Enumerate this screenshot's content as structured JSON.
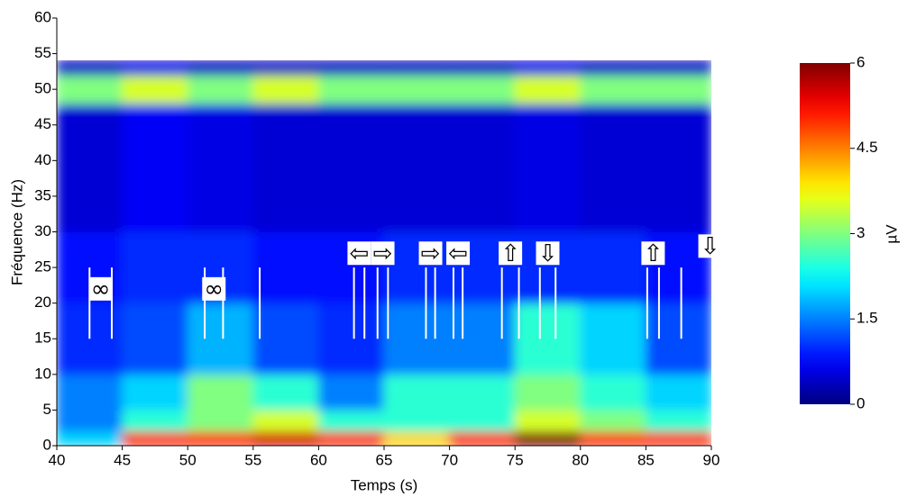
{
  "chart_data": {
    "type": "heatmap",
    "xlabel": "Temps (s)",
    "ylabel": "Fréquence (Hz)",
    "colorbar_label": "µV",
    "xlim": [
      40,
      90
    ],
    "ylim": [
      0,
      60
    ],
    "xticks": [
      40,
      45,
      50,
      55,
      60,
      65,
      70,
      75,
      80,
      85,
      90
    ],
    "yticks": [
      0,
      5,
      10,
      15,
      20,
      25,
      30,
      35,
      40,
      45,
      50,
      55,
      60
    ],
    "clim": [
      0,
      6
    ],
    "cticks": [
      0,
      1.5,
      3,
      4.5,
      6
    ],
    "colormap": "jet",
    "x_bins": [
      40,
      45,
      50,
      55,
      60,
      65,
      70,
      75,
      80,
      85,
      90
    ],
    "y_bins": [
      0,
      2,
      5,
      10,
      20,
      30,
      48,
      52,
      54
    ],
    "z": [
      [
        2,
        5,
        5,
        5.5,
        5,
        4,
        5,
        6,
        5,
        5
      ],
      [
        1.5,
        2.5,
        3,
        3.5,
        2.5,
        2.5,
        2.5,
        3.5,
        3,
        2.5
      ],
      [
        1.5,
        2,
        3,
        2.5,
        1.5,
        2.5,
        2.5,
        3,
        2.5,
        2
      ],
      [
        1,
        1.2,
        1.8,
        1.2,
        1,
        1.5,
        1.5,
        2.5,
        2,
        1.2
      ],
      [
        0.8,
        1,
        1,
        0.8,
        0.8,
        1,
        1,
        1,
        1,
        0.8
      ],
      [
        0.5,
        0.7,
        0.6,
        0.5,
        0.5,
        0.5,
        0.5,
        0.6,
        0.5,
        0.5
      ],
      [
        3,
        3.5,
        3,
        3.5,
        3,
        3,
        3,
        3.5,
        3,
        3
      ],
      [
        0.4,
        0.6,
        0.4,
        0.4,
        0.4,
        0.4,
        0.4,
        0.6,
        0.4,
        0.4
      ]
    ],
    "event_y_range": [
      15,
      25
    ],
    "events": [
      {
        "lines": [
          42.5,
          44.2
        ],
        "label": "∞",
        "y": 22
      },
      {
        "lines": [
          51.3,
          52.7
        ],
        "label": "∞",
        "y": 22
      },
      {
        "lines": [
          55.5
        ]
      },
      {
        "lines": [
          62.7,
          63.5
        ],
        "label": "⇦",
        "y": 27
      },
      {
        "lines": [
          64.5,
          65.3
        ],
        "label": "⇨",
        "y": 27
      },
      {
        "lines": [
          68.2,
          68.9
        ],
        "label": "⇨",
        "y": 27
      },
      {
        "lines": [
          70.3,
          71
        ],
        "label": "⇦",
        "y": 27
      },
      {
        "lines": [
          74,
          75.3
        ],
        "label": "⇧",
        "y": 27
      },
      {
        "lines": [
          76.9,
          78.1
        ],
        "label": "⇩",
        "y": 27
      },
      {
        "lines": [
          85.1,
          86
        ],
        "label": "⇧",
        "y": 27
      },
      {
        "lines": [
          87.7
        ]
      },
      {
        "lines": [],
        "label": "⇩",
        "y": 28,
        "at": 89.9
      }
    ]
  }
}
